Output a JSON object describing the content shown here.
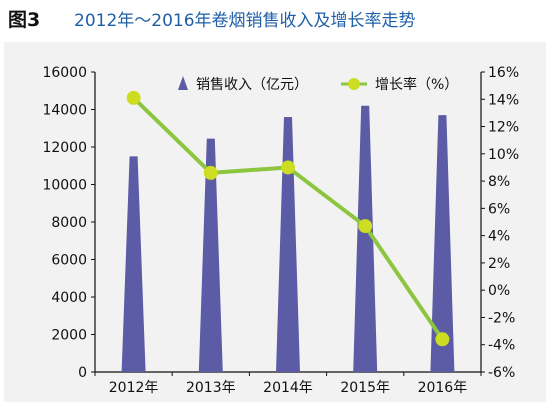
{
  "figure_label": "图3",
  "chart_data": {
    "type": "bar",
    "title": "2012年～2016年卷烟销售收入及增长率走势",
    "categories": [
      "2012年",
      "2013年",
      "2014年",
      "2015年",
      "2016年"
    ],
    "series": [
      {
        "name": "销售收入（亿元）",
        "type": "bar",
        "axis": "left",
        "color": "#5b5ba6",
        "values": [
          11500,
          12450,
          13600,
          14200,
          13700
        ]
      },
      {
        "name": "增长率（%）",
        "type": "line",
        "axis": "right",
        "color": "#8cc63f",
        "marker_color": "#ccdd22",
        "values": [
          14.1,
          8.6,
          9.0,
          4.7,
          -3.6
        ]
      }
    ],
    "ylim_left": [
      0,
      16000
    ],
    "ylim_right": [
      -6,
      16
    ],
    "y_left_ticks": [
      "0",
      "2000",
      "4000",
      "6000",
      "8000",
      "10000",
      "12000",
      "14000",
      "16000"
    ],
    "y_right_ticks": [
      "-6%",
      "-4%",
      "-2%",
      "0%",
      "2%",
      "4%",
      "6%",
      "8%",
      "10%",
      "12%",
      "14%",
      "16%"
    ],
    "grid": false,
    "legend_position": "top-inside"
  }
}
